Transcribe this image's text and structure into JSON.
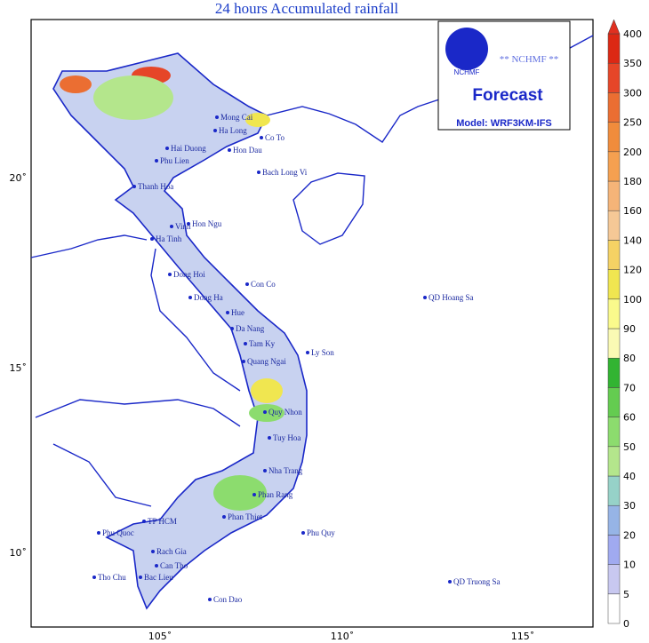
{
  "title": "24 hours Accumulated rainfall",
  "logo": {
    "emblem": "NCHMF",
    "center": "** NCHMF **",
    "heading": "Forecast",
    "model": "Model: WRF3KM-IFS"
  },
  "lat_labels": [
    "20˚",
    "15˚",
    "10˚"
  ],
  "lon_labels": [
    "105˚",
    "110˚",
    "115˚"
  ],
  "places": [
    "Mong Cai",
    "Ha Long",
    "Co To",
    "Hai Duong",
    "Hon Dau",
    "Phu Lien",
    "Bach Long Vi",
    "Thanh Hoa",
    "Hon Ngu",
    "Vinh",
    "Ha Tinh",
    "Dong Hoi",
    "Con Co",
    "Dong Ha",
    "Hue",
    "Da Nang",
    "Tam Ky",
    "Ly Son",
    "Quang Ngai",
    "Quy Nhon",
    "Tuy Hoa",
    "Nha Trang",
    "Phan Rang",
    "Phan Thiet",
    "Phu Quy",
    "TP HCM",
    "Phu Quoc",
    "Rach Gia",
    "Can Tho",
    "Tho Chu",
    "Bac Lieu",
    "Con Dao",
    "QD Hoang Sa",
    "QD Truong Sa"
  ],
  "colorbar": {
    "levels": [
      0,
      5,
      10,
      20,
      30,
      40,
      50,
      60,
      70,
      80,
      90,
      100,
      120,
      140,
      160,
      180,
      200,
      250,
      300,
      350,
      400
    ],
    "colors": [
      "#ffffff",
      "#c8c8f0",
      "#a0aaf0",
      "#96b4e6",
      "#96d2c8",
      "#b4e68c",
      "#8cdc6e",
      "#64cc50",
      "#32b432",
      "#fafab4",
      "#fafa8c",
      "#f0e650",
      "#f5d264",
      "#f5c896",
      "#f5b478",
      "#f5a050",
      "#f08c3c",
      "#eb6e32",
      "#e64628",
      "#dc2814"
    ],
    "arrow_color": "#e03020"
  }
}
